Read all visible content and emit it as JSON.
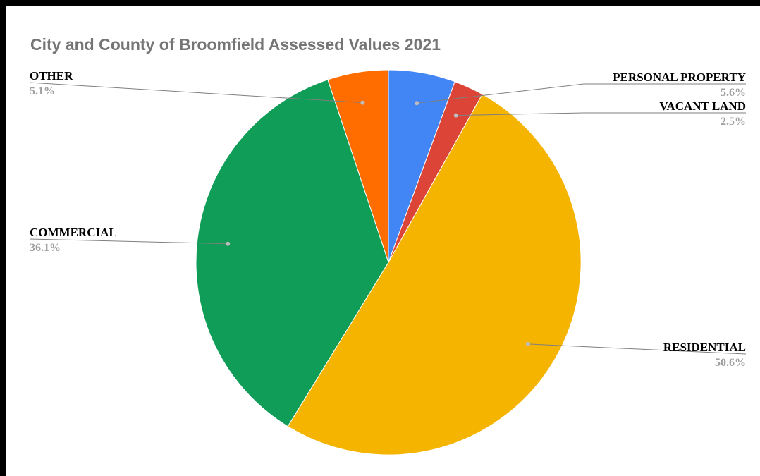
{
  "chart_data": {
    "type": "pie",
    "title": "City and County of Broomfield Assessed Values 2021",
    "start_angle_deg": 0,
    "direction": "clockwise",
    "slices": [
      {
        "label": "PERSONAL PROPERTY",
        "value": 5.6,
        "pct_label": "5.6%",
        "color": "#4285F4"
      },
      {
        "label": "VACANT LAND",
        "value": 2.5,
        "pct_label": "2.5%",
        "color": "#DB4437"
      },
      {
        "label": "RESIDENTIAL",
        "value": 50.6,
        "pct_label": "50.6%",
        "color": "#F4B400"
      },
      {
        "label": "COMMERCIAL",
        "value": 36.1,
        "pct_label": "36.1%",
        "color": "#0F9D58"
      },
      {
        "label": "OTHER",
        "value": 5.1,
        "pct_label": "5.1%",
        "color": "#FF6D01"
      }
    ]
  }
}
